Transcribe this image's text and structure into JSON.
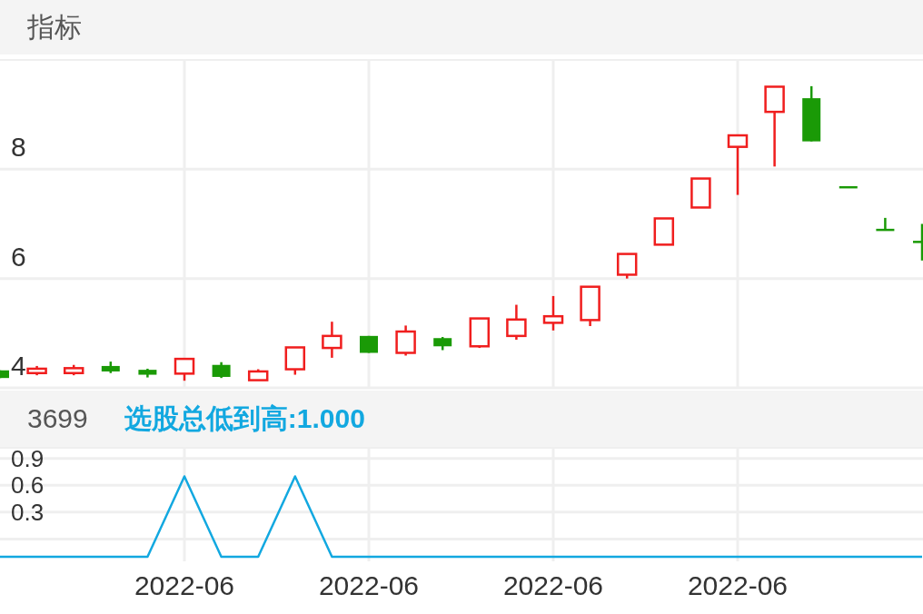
{
  "chart_data": [
    {
      "type": "candlestick",
      "title": "指标",
      "categories": [
        null,
        null,
        null,
        null,
        null,
        "2022-06",
        null,
        null,
        null,
        null,
        "2022-06",
        null,
        null,
        null,
        null,
        "2022-06",
        null,
        null,
        null,
        null,
        "2022-06",
        null,
        null,
        null,
        null,
        null
      ],
      "ohlc": [
        [
          4.32,
          4.32,
          4.18,
          4.18
        ],
        [
          4.27,
          4.4,
          4.23,
          4.35
        ],
        [
          4.27,
          4.42,
          4.23,
          4.36
        ],
        [
          4.4,
          4.48,
          4.27,
          4.3
        ],
        [
          4.33,
          4.35,
          4.19,
          4.24
        ],
        [
          4.26,
          4.53,
          4.13,
          4.53
        ],
        [
          4.42,
          4.47,
          4.18,
          4.2
        ],
        [
          4.14,
          4.34,
          4.14,
          4.3
        ],
        [
          4.34,
          4.74,
          4.24,
          4.74
        ],
        [
          4.73,
          5.21,
          4.55,
          4.95
        ],
        [
          4.95,
          4.95,
          4.64,
          4.64
        ],
        [
          4.64,
          5.14,
          4.59,
          5.03
        ],
        [
          4.91,
          4.93,
          4.69,
          4.76
        ],
        [
          4.76,
          5.27,
          4.73,
          5.27
        ],
        [
          4.95,
          5.52,
          4.88,
          5.25
        ],
        [
          5.19,
          5.68,
          5.05,
          5.31
        ],
        [
          5.24,
          5.85,
          5.13,
          5.85
        ],
        [
          6.07,
          6.45,
          6.0,
          6.45
        ],
        [
          6.62,
          7.1,
          6.62,
          7.1
        ],
        [
          7.3,
          7.83,
          7.3,
          7.83
        ],
        [
          8.41,
          8.62,
          7.53,
          8.62
        ],
        [
          9.05,
          9.51,
          8.05,
          9.51
        ],
        [
          9.3,
          9.52,
          8.51,
          8.51
        ],
        [
          7.67,
          7.67,
          7.67,
          7.67
        ],
        [
          6.89,
          7.11,
          6.89,
          6.89
        ],
        [
          6.67,
          7.0,
          6.33,
          6.67
        ]
      ],
      "colors": [
        "#1a9a06",
        "#f01e1e",
        "#f01e1e",
        "#1a9a06",
        "#1a9a06",
        "#f01e1e",
        "#1a9a06",
        "#f01e1e",
        "#f01e1e",
        "#f01e1e",
        "#1a9a06",
        "#f01e1e",
        "#1a9a06",
        "#f01e1e",
        "#f01e1e",
        "#f01e1e",
        "#f01e1e",
        "#f01e1e",
        "#f01e1e",
        "#f01e1e",
        "#f01e1e",
        "#f01e1e",
        "#1a9a06",
        "#1a9a06",
        "#1a9a06",
        "#1a9a06"
      ],
      "ylim": [
        4,
        10
      ],
      "yticks": [
        4,
        6,
        8
      ],
      "grid": true,
      "tick_labels": "y"
    },
    {
      "type": "line",
      "annotations": [
        "3699"
      ],
      "categories": [
        null,
        null,
        null,
        null,
        null,
        "2022-06",
        null,
        null,
        null,
        null,
        "2022-06",
        null,
        null,
        null,
        null,
        "2022-06",
        null,
        null,
        null,
        null,
        "2022-06",
        null,
        null,
        null,
        null,
        null
      ],
      "series": [
        {
          "name": "选股总低到高:1.000",
          "color": "#12a8e0",
          "values": [
            -0.2,
            -0.2,
            -0.2,
            -0.2,
            -0.2,
            0.7,
            -0.2,
            -0.2,
            0.7,
            -0.2,
            -0.2,
            -0.2,
            -0.2,
            -0.2,
            -0.2,
            -0.2,
            -0.2,
            -0.2,
            -0.2,
            -0.2,
            -0.2,
            -0.2,
            -0.2,
            -0.2,
            -0.2,
            -0.2
          ]
        }
      ],
      "ylim": [
        -0.25,
        1.02
      ],
      "yticks": [
        {
          "value": 0,
          "label": null
        },
        0.3,
        0.6,
        0.9
      ],
      "grid": true,
      "marker": "none",
      "line_style": "solid"
    }
  ]
}
